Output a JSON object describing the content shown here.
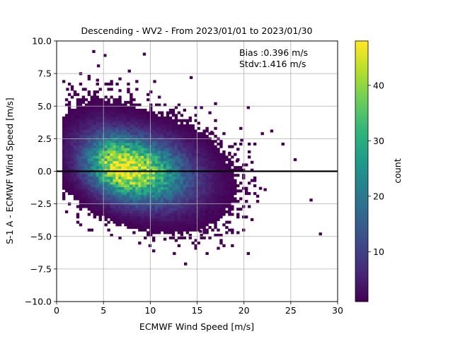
{
  "chart_data": {
    "type": "heatmap",
    "title": "Descending - WV2 - From 2023/01/01 to 2023/01/30",
    "xlabel": "ECMWF Wind Speed [m/s]",
    "ylabel": "S-1 A - ECMWF Wind Speed [m/s]",
    "xlim": [
      0,
      30
    ],
    "ylim": [
      -10,
      10
    ],
    "xticks": [
      "0",
      "5",
      "10",
      "15",
      "20",
      "25",
      "30"
    ],
    "yticks": [
      "−10.0",
      "−7.5",
      "−5.0",
      "−2.5",
      "0.0",
      "2.5",
      "5.0",
      "7.5",
      "10.0"
    ],
    "grid": true,
    "reference_line_y": 0,
    "annotation": {
      "bias": "Bias :0.396 m/s",
      "stdv": "Stdv:1.416 m/s"
    },
    "colorbar": {
      "label": "count",
      "colormap": "viridis",
      "min": 1,
      "max": 48,
      "ticks": [
        "10",
        "20",
        "30",
        "40"
      ]
    },
    "density_model": {
      "peak_x": 7.0,
      "peak_y": 0.2,
      "peak_count": 48,
      "slope": -0.12,
      "spread_x": 3.2,
      "spread_y": 1.4,
      "bin_width": 0.3,
      "bin_height": 0.2
    },
    "outliers": [
      [
        9.2,
        8.9
      ],
      [
        7.6,
        7.6
      ],
      [
        3.8,
        9.1
      ],
      [
        5.0,
        8.8
      ],
      [
        4.3,
        8.0
      ],
      [
        14.2,
        7.1
      ],
      [
        16.8,
        5.1
      ],
      [
        20.3,
        4.8
      ],
      [
        22.8,
        3.0
      ],
      [
        21.8,
        2.8
      ],
      [
        24.0,
        2.0
      ],
      [
        25.3,
        0.8
      ],
      [
        22.1,
        -1.5
      ],
      [
        27.0,
        -2.3
      ],
      [
        28.0,
        -4.9
      ],
      [
        20.3,
        -6.4
      ],
      [
        13.6,
        -7.2
      ],
      [
        12.4,
        -6.4
      ],
      [
        9.8,
        -5.8
      ],
      [
        11.4,
        -5.3
      ],
      [
        15.2,
        -4.7
      ],
      [
        4.2,
        6.9
      ],
      [
        1.8,
        5.8
      ],
      [
        2.0,
        4.1
      ],
      [
        18.3,
        1.3
      ],
      [
        19.1,
        0.7
      ],
      [
        17.6,
        -2.1
      ],
      [
        15.8,
        -3.2
      ],
      [
        16.4,
        2.9
      ],
      [
        19.6,
        2.3
      ],
      [
        18.8,
        -1.1
      ],
      [
        2.9,
        6.2
      ],
      [
        1.0,
        6.2
      ],
      [
        3.3,
        7.2
      ],
      [
        6.6,
        6.1
      ],
      [
        10.3,
        6.8
      ]
    ]
  }
}
